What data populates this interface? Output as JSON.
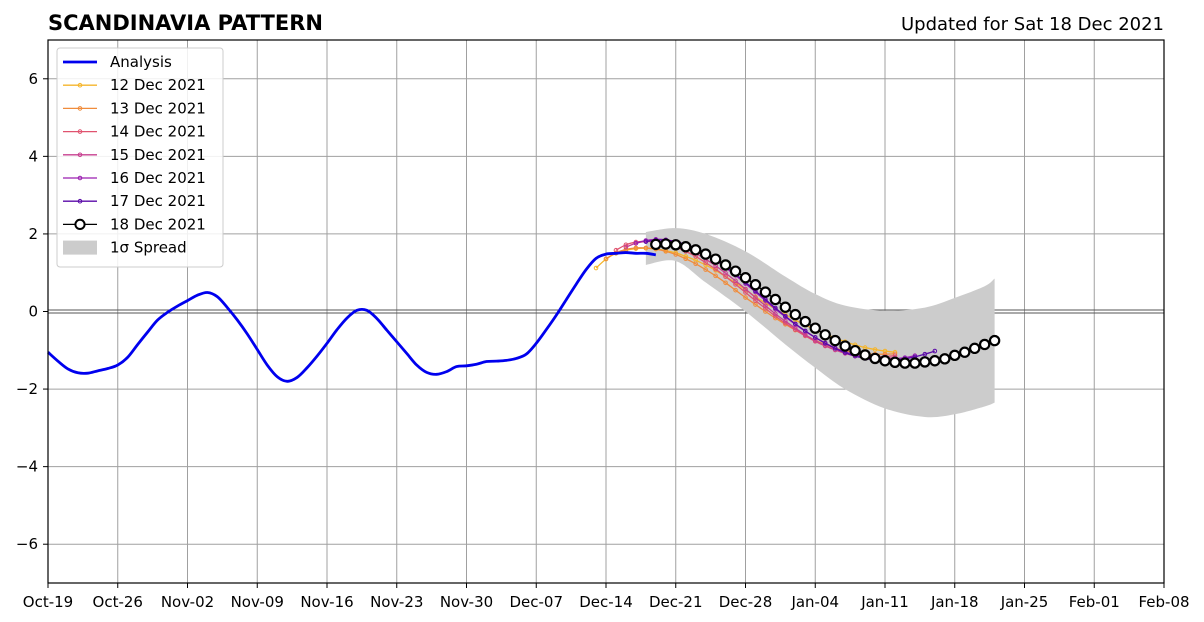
{
  "chart_data": {
    "type": "line",
    "title": "SCANDINAVIA PATTERN",
    "subtitle": "Updated for Sat 18 Dec 2021",
    "xlabel": "",
    "ylabel": "",
    "x_range_days": [
      0,
      112
    ],
    "ylim": [
      -7,
      7
    ],
    "x_tick_labels": [
      "Oct-19",
      "Oct-26",
      "Nov-02",
      "Nov-09",
      "Nov-16",
      "Nov-23",
      "Nov-30",
      "Dec-07",
      "Dec-14",
      "Dec-21",
      "Dec-28",
      "Jan-04",
      "Jan-11",
      "Jan-18",
      "Jan-25",
      "Feb-01",
      "Feb-08"
    ],
    "x_tick_days": [
      0,
      7,
      14,
      21,
      28,
      35,
      42,
      49,
      56,
      63,
      70,
      77,
      84,
      91,
      98,
      105,
      112
    ],
    "y_ticks": [
      -6,
      -4,
      -2,
      0,
      2,
      4,
      6
    ],
    "y_tick_labels": [
      "−6",
      "−4",
      "−2",
      "0",
      "2",
      "4",
      "6"
    ],
    "grid": true,
    "legend_position": "top-left",
    "legend": {
      "analysis": "Analysis",
      "spread": "1σ Spread",
      "forecasts": [
        "12 Dec 2021",
        "13 Dec 2021",
        "14 Dec 2021",
        "15 Dec 2021",
        "16 Dec 2021",
        "17 Dec 2021",
        "18 Dec 2021"
      ]
    },
    "analysis": {
      "name": "Analysis",
      "color": "#0000ee",
      "values": [
        -1.05,
        -1.28,
        -1.48,
        -1.58,
        -1.59,
        -1.53,
        -1.47,
        -1.38,
        -1.18,
        -0.85,
        -0.53,
        -0.22,
        -0.02,
        0.14,
        0.28,
        0.42,
        0.49,
        0.38,
        0.1,
        -0.22,
        -0.58,
        -0.98,
        -1.38,
        -1.68,
        -1.8,
        -1.7,
        -1.45,
        -1.15,
        -0.82,
        -0.47,
        -0.17,
        0.03,
        0.03,
        -0.18,
        -0.48,
        -0.78,
        -1.08,
        -1.38,
        -1.57,
        -1.62,
        -1.55,
        -1.42,
        -1.4,
        -1.36,
        -1.29,
        -1.28,
        -1.26,
        -1.21,
        -1.1,
        -0.82,
        -0.47,
        -0.1,
        0.3,
        0.7,
        1.08,
        1.37,
        1.48,
        1.5,
        1.52,
        1.5,
        1.5,
        1.46
      ]
    },
    "spread": {
      "name": "1σ Spread",
      "color": "#cccccc",
      "x": [
        60,
        63,
        66,
        70,
        74,
        77,
        80,
        84,
        88,
        91,
        94,
        95
      ],
      "upper": [
        2.05,
        2.15,
        2.0,
        1.55,
        0.9,
        0.45,
        0.15,
        0.02,
        0.1,
        0.35,
        0.65,
        0.85
      ],
      "lower": [
        1.2,
        1.3,
        0.75,
        0.0,
        -0.85,
        -1.45,
        -2.0,
        -2.5,
        -2.72,
        -2.65,
        -2.45,
        -2.35
      ]
    },
    "forecasts": [
      {
        "name": "12 Dec 2021",
        "color": "#f5b52b",
        "x0": 55,
        "values": [
          1.12,
          1.35,
          1.5,
          1.58,
          1.62,
          1.63,
          1.61,
          1.57,
          1.51,
          1.42,
          1.32,
          1.2,
          1.06,
          0.9,
          0.74,
          0.56,
          0.38,
          0.22,
          0.06,
          -0.08,
          -0.22,
          -0.35,
          -0.47,
          -0.58,
          -0.68,
          -0.78,
          -0.86,
          -0.93,
          -0.98,
          -1.02,
          -1.05
        ]
      },
      {
        "name": "13 Dec 2021",
        "color": "#f08c3c",
        "x0": 56,
        "values": [
          1.36,
          1.51,
          1.6,
          1.64,
          1.64,
          1.61,
          1.55,
          1.47,
          1.36,
          1.23,
          1.08,
          0.92,
          0.74,
          0.55,
          0.36,
          0.18,
          0.0,
          -0.17,
          -0.33,
          -0.48,
          -0.62,
          -0.74,
          -0.85,
          -0.94,
          -1.01,
          -1.06,
          -1.09,
          -1.1,
          -1.1,
          -1.09
        ]
      },
      {
        "name": "14 Dec 2021",
        "color": "#e0536f",
        "x0": 57,
        "values": [
          1.58,
          1.72,
          1.79,
          1.81,
          1.79,
          1.74,
          1.66,
          1.55,
          1.42,
          1.26,
          1.09,
          0.9,
          0.7,
          0.49,
          0.28,
          0.08,
          -0.12,
          -0.3,
          -0.47,
          -0.63,
          -0.77,
          -0.89,
          -0.99,
          -1.07,
          -1.13,
          -1.16,
          -1.17,
          -1.16,
          -1.14
        ]
      },
      {
        "name": "15 Dec 2021",
        "color": "#c73f8f",
        "x0": 58,
        "values": [
          1.66,
          1.76,
          1.81,
          1.81,
          1.78,
          1.71,
          1.62,
          1.5,
          1.35,
          1.18,
          0.99,
          0.79,
          0.58,
          0.36,
          0.15,
          -0.06,
          -0.25,
          -0.43,
          -0.6,
          -0.75,
          -0.88,
          -0.99,
          -1.08,
          -1.15,
          -1.19,
          -1.21,
          -1.21,
          -1.19
        ]
      },
      {
        "name": "16 Dec 2021",
        "color": "#9a1fb0",
        "x0": 59,
        "values": [
          1.76,
          1.83,
          1.86,
          1.85,
          1.8,
          1.72,
          1.61,
          1.47,
          1.31,
          1.13,
          0.93,
          0.72,
          0.5,
          0.28,
          0.06,
          -0.14,
          -0.33,
          -0.51,
          -0.67,
          -0.81,
          -0.94,
          -1.04,
          -1.12,
          -1.18,
          -1.22,
          -1.23,
          -1.22,
          -1.19,
          -1.14
        ]
      },
      {
        "name": "17 Dec 2021",
        "color": "#5a0aa8",
        "x0": 60,
        "values": [
          1.8,
          1.84,
          1.84,
          1.8,
          1.73,
          1.63,
          1.5,
          1.34,
          1.16,
          0.96,
          0.75,
          0.53,
          0.31,
          0.09,
          -0.12,
          -0.32,
          -0.5,
          -0.67,
          -0.82,
          -0.95,
          -1.06,
          -1.15,
          -1.21,
          -1.25,
          -1.26,
          -1.25,
          -1.22,
          -1.17,
          -1.1,
          -1.02
        ]
      },
      {
        "name": "18 Dec 2021",
        "color": "#000000",
        "x0": 61,
        "values": [
          1.73,
          1.74,
          1.72,
          1.67,
          1.59,
          1.48,
          1.35,
          1.2,
          1.04,
          0.87,
          0.69,
          0.5,
          0.31,
          0.11,
          -0.08,
          -0.26,
          -0.43,
          -0.6,
          -0.75,
          -0.89,
          -1.01,
          -1.12,
          -1.21,
          -1.27,
          -1.31,
          -1.33,
          -1.33,
          -1.3,
          -1.27,
          -1.22,
          -1.13,
          -1.05,
          -0.95,
          -0.85,
          -0.75
        ]
      }
    ]
  }
}
